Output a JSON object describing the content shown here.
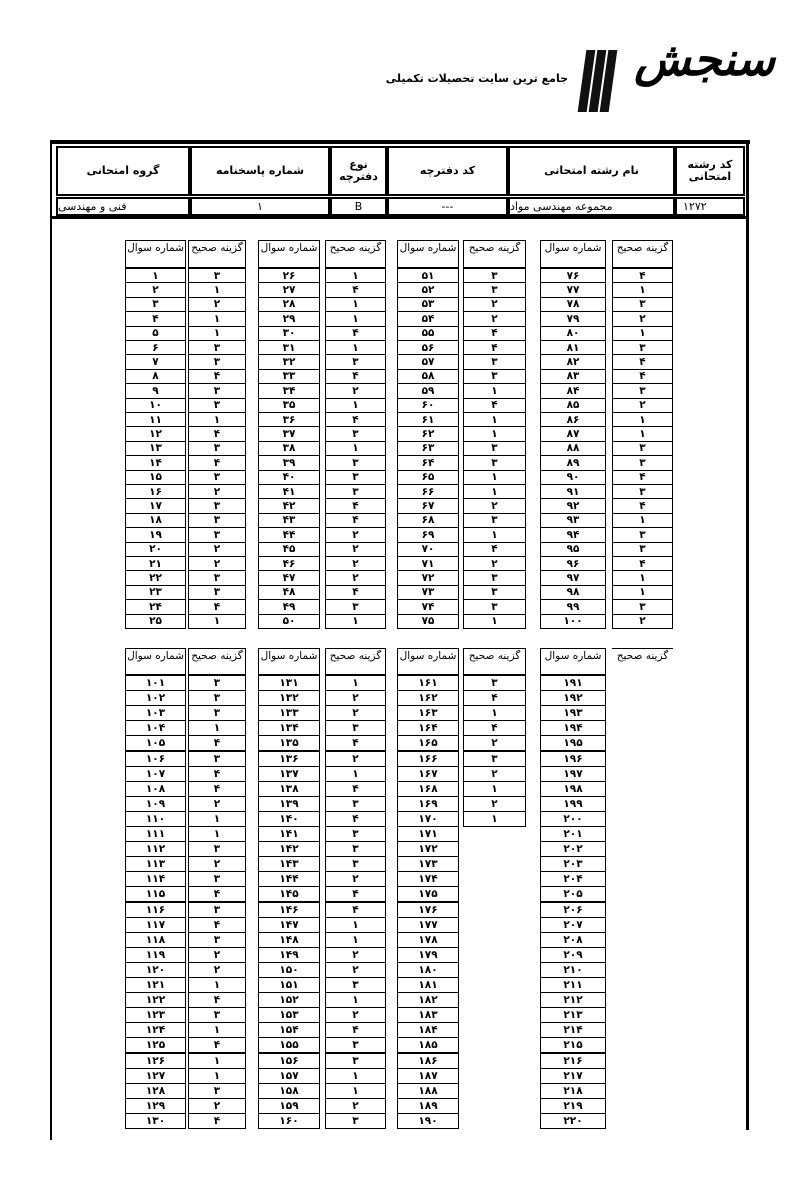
{
  "logo": {
    "brand": "سنجش",
    "tagline": "جامع ترین سایت تحصیلات تکمیلی",
    "icon": "book-bars-icon"
  },
  "header": {
    "columns": [
      {
        "label": "کد رشته امتحانی",
        "value": "۱۲۷۲"
      },
      {
        "label": "نام رشته امتحانی",
        "value": "مجموعه مهندسی مواد"
      },
      {
        "label": "کد دفترچه",
        "value": "---"
      },
      {
        "label": "نوع دفترچه",
        "value": "B"
      },
      {
        "label": "شماره پاسخنامه",
        "value": "۱"
      },
      {
        "label": "گروه امتحانی",
        "value": "فنی و مهندسی"
      }
    ]
  },
  "column_labels": {
    "question": "شماره سوال",
    "answer": "گزینه صحیح"
  },
  "tables": [
    {
      "groups": [
        {
          "questions": [
            "۱",
            "۲",
            "۳",
            "۴",
            "۵",
            "۶",
            "۷",
            "۸",
            "۹",
            "۱۰",
            "۱۱",
            "۱۲",
            "۱۳",
            "۱۴",
            "۱۵",
            "۱۶",
            "۱۷",
            "۱۸",
            "۱۹",
            "۲۰",
            "۲۱",
            "۲۲",
            "۲۳",
            "۲۴",
            "۲۵"
          ],
          "answers": [
            "۳",
            "۱",
            "۲",
            "۱",
            "۱",
            "۳",
            "۳",
            "۴",
            "۳",
            "۳",
            "۱",
            "۴",
            "۳",
            "۴",
            "۳",
            "۲",
            "۳",
            "۳",
            "۳",
            "۲",
            "۲",
            "۳",
            "۳",
            "۴",
            "۱"
          ]
        },
        {
          "questions": [
            "۲۶",
            "۲۷",
            "۲۸",
            "۲۹",
            "۳۰",
            "۳۱",
            "۳۲",
            "۳۳",
            "۳۴",
            "۳۵",
            "۳۶",
            "۳۷",
            "۳۸",
            "۳۹",
            "۴۰",
            "۴۱",
            "۴۲",
            "۴۳",
            "۴۴",
            "۴۵",
            "۴۶",
            "۴۷",
            "۴۸",
            "۴۹",
            "۵۰"
          ],
          "answers": [
            "۱",
            "۴",
            "۱",
            "۱",
            "۴",
            "۱",
            "۳",
            "۴",
            "۲",
            "۱",
            "۴",
            "۳",
            "۱",
            "۳",
            "۳",
            "۳",
            "۴",
            "۴",
            "۲",
            "۲",
            "۲",
            "۲",
            "۴",
            "۳",
            "۱"
          ]
        },
        {
          "questions": [
            "۵۱",
            "۵۲",
            "۵۳",
            "۵۴",
            "۵۵",
            "۵۶",
            "۵۷",
            "۵۸",
            "۵۹",
            "۶۰",
            "۶۱",
            "۶۲",
            "۶۳",
            "۶۴",
            "۶۵",
            "۶۶",
            "۶۷",
            "۶۸",
            "۶۹",
            "۷۰",
            "۷۱",
            "۷۲",
            "۷۳",
            "۷۴",
            "۷۵"
          ],
          "answers": [
            "۳",
            "۳",
            "۲",
            "۲",
            "۴",
            "۴",
            "۳",
            "۳",
            "۱",
            "۴",
            "۱",
            "۱",
            "۳",
            "۳",
            "۱",
            "۱",
            "۲",
            "۳",
            "۱",
            "۴",
            "۲",
            "۳",
            "۳",
            "۳",
            "۱"
          ]
        },
        {
          "questions": [
            "۷۶",
            "۷۷",
            "۷۸",
            "۷۹",
            "۸۰",
            "۸۱",
            "۸۲",
            "۸۳",
            "۸۴",
            "۸۵",
            "۸۶",
            "۸۷",
            "۸۸",
            "۸۹",
            "۹۰",
            "۹۱",
            "۹۲",
            "۹۳",
            "۹۴",
            "۹۵",
            "۹۶",
            "۹۷",
            "۹۸",
            "۹۹",
            "۱۰۰"
          ],
          "answers": [
            "۴",
            "۱",
            "۳",
            "۲",
            "۱",
            "۳",
            "۴",
            "۴",
            "۳",
            "۲",
            "۱",
            "۱",
            "۳",
            "۳",
            "۴",
            "۳",
            "۴",
            "۱",
            "۳",
            "۳",
            "۴",
            "۱",
            "۱",
            "۳",
            "۲"
          ]
        }
      ]
    },
    {
      "groups": [
        {
          "questions": [
            "۱۰۱",
            "۱۰۲",
            "۱۰۳",
            "۱۰۴",
            "۱۰۵",
            "۱۰۶",
            "۱۰۷",
            "۱۰۸",
            "۱۰۹",
            "۱۱۰",
            "۱۱۱",
            "۱۱۲",
            "۱۱۳",
            "۱۱۴",
            "۱۱۵",
            "۱۱۶",
            "۱۱۷",
            "۱۱۸",
            "۱۱۹",
            "۱۲۰",
            "۱۲۱",
            "۱۲۲",
            "۱۲۳",
            "۱۲۴",
            "۱۲۵",
            "۱۲۶",
            "۱۲۷",
            "۱۲۸",
            "۱۲۹",
            "۱۳۰"
          ],
          "answers": [
            "۳",
            "۳",
            "۳",
            "۱",
            "۴",
            "۳",
            "۴",
            "۴",
            "۲",
            "۱",
            "۱",
            "۳",
            "۲",
            "۳",
            "۴",
            "۳",
            "۴",
            "۳",
            "۲",
            "۲",
            "۱",
            "۴",
            "۳",
            "۱",
            "۴",
            "۱",
            "۱",
            "۳",
            "۲",
            "۴"
          ]
        },
        {
          "questions": [
            "۱۳۱",
            "۱۳۲",
            "۱۳۳",
            "۱۳۴",
            "۱۳۵",
            "۱۳۶",
            "۱۳۷",
            "۱۳۸",
            "۱۳۹",
            "۱۴۰",
            "۱۴۱",
            "۱۴۲",
            "۱۴۳",
            "۱۴۴",
            "۱۴۵",
            "۱۴۶",
            "۱۴۷",
            "۱۴۸",
            "۱۴۹",
            "۱۵۰",
            "۱۵۱",
            "۱۵۲",
            "۱۵۳",
            "۱۵۴",
            "۱۵۵",
            "۱۵۶",
            "۱۵۷",
            "۱۵۸",
            "۱۵۹",
            "۱۶۰"
          ],
          "answers": [
            "۱",
            "۲",
            "۲",
            "۳",
            "۴",
            "۲",
            "۱",
            "۴",
            "۳",
            "۴",
            "۳",
            "۳",
            "۳",
            "۲",
            "۴",
            "۴",
            "۱",
            "۱",
            "۲",
            "۲",
            "۳",
            "۱",
            "۲",
            "۴",
            "۳",
            "۳",
            "۱",
            "۱",
            "۲",
            "۳"
          ]
        },
        {
          "questions": [
            "۱۶۱",
            "۱۶۲",
            "۱۶۳",
            "۱۶۴",
            "۱۶۵",
            "۱۶۶",
            "۱۶۷",
            "۱۶۸",
            "۱۶۹",
            "۱۷۰",
            "۱۷۱",
            "۱۷۲",
            "۱۷۳",
            "۱۷۴",
            "۱۷۵",
            "۱۷۶",
            "۱۷۷",
            "۱۷۸",
            "۱۷۹",
            "۱۸۰",
            "۱۸۱",
            "۱۸۲",
            "۱۸۳",
            "۱۸۴",
            "۱۸۵",
            "۱۸۶",
            "۱۸۷",
            "۱۸۸",
            "۱۸۹",
            "۱۹۰"
          ],
          "answers": [
            "۳",
            "۴",
            "۱",
            "۴",
            "۲",
            "۳",
            "۲",
            "۱",
            "۲",
            "۱"
          ]
        },
        {
          "questions": [
            "۱۹۱",
            "۱۹۲",
            "۱۹۳",
            "۱۹۴",
            "۱۹۵",
            "۱۹۶",
            "۱۹۷",
            "۱۹۸",
            "۱۹۹",
            "۲۰۰",
            "۲۰۱",
            "۲۰۲",
            "۲۰۳",
            "۲۰۴",
            "۲۰۵",
            "۲۰۶",
            "۲۰۷",
            "۲۰۸",
            "۲۰۹",
            "۲۱۰",
            "۲۱۱",
            "۲۱۲",
            "۲۱۳",
            "۲۱۴",
            "۲۱۵",
            "۲۱۶",
            "۲۱۷",
            "۲۱۸",
            "۲۱۹",
            "۲۲۰"
          ],
          "answers": []
        }
      ]
    }
  ]
}
